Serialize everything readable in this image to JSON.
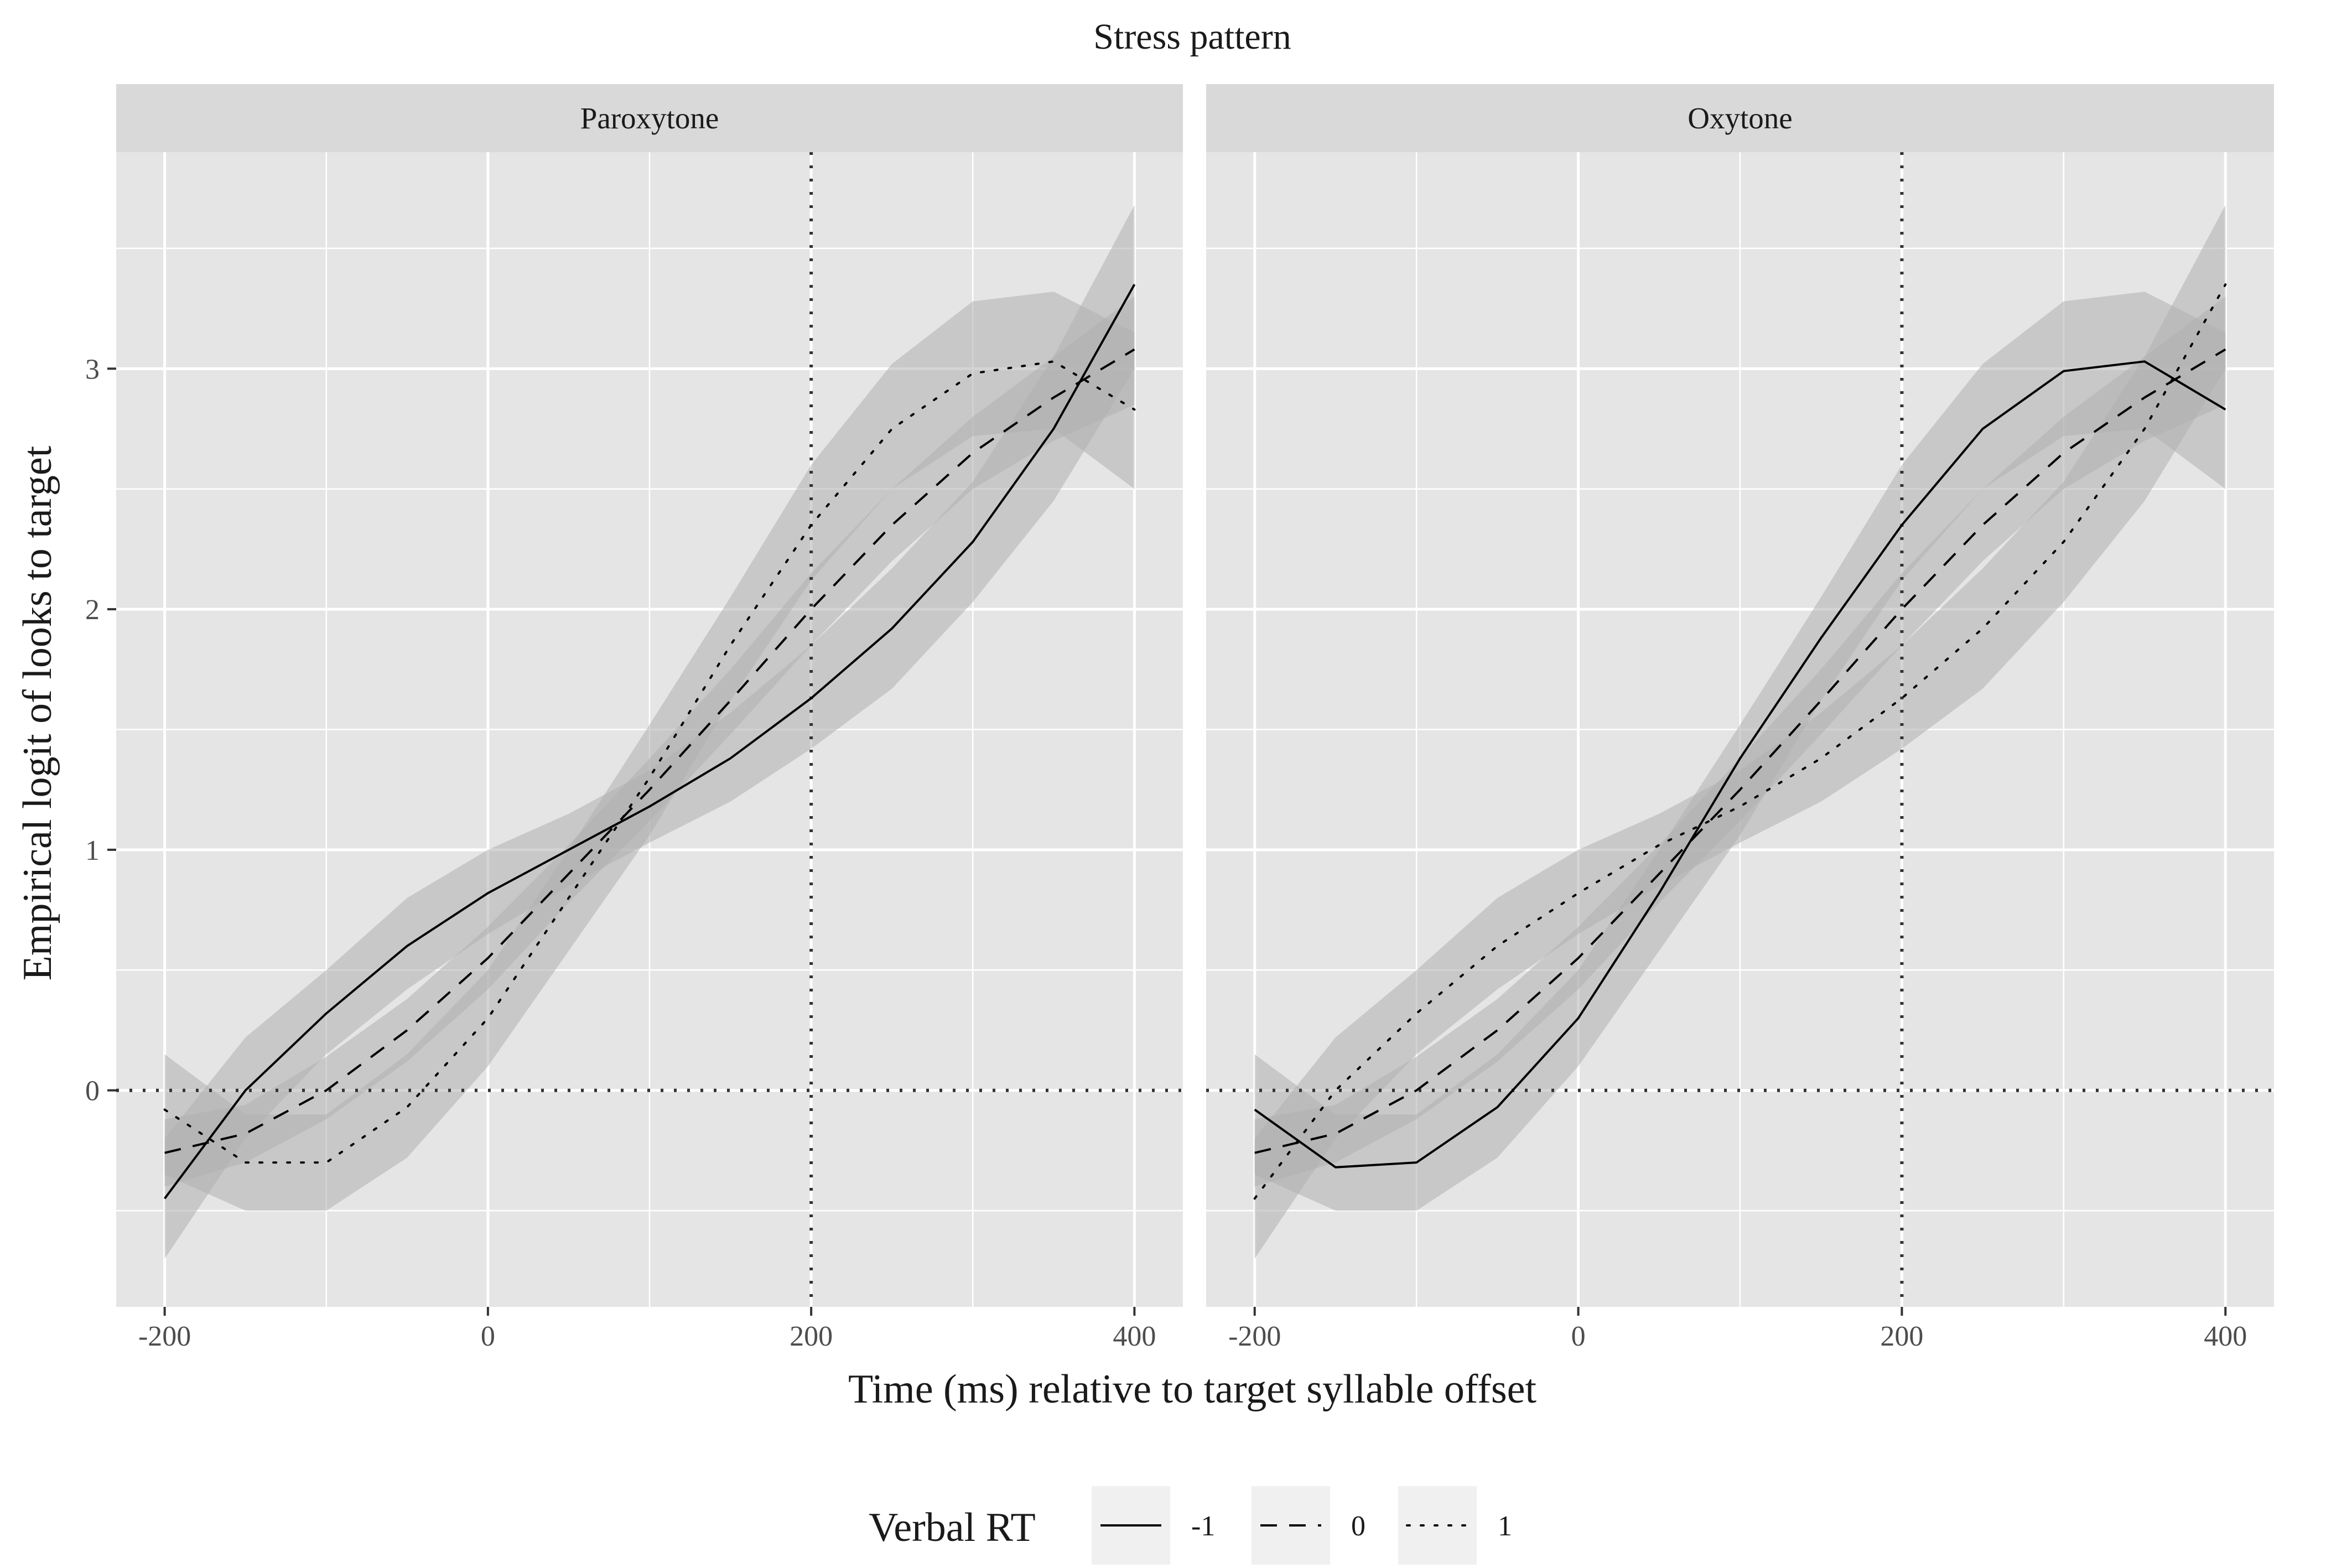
{
  "chart_data": {
    "type": "line",
    "title": "Stress pattern",
    "xlabel": "Time (ms) relative to target syllable offset",
    "ylabel": "Empirical logit of looks to target",
    "xlim": [
      -230,
      430
    ],
    "ylim": [
      -0.9,
      3.9
    ],
    "x_ticks": [
      -200,
      0,
      200,
      400
    ],
    "x_tick_labels": [
      "-200",
      "0",
      "200",
      "400"
    ],
    "y_ticks": [
      0,
      1,
      2,
      3
    ],
    "y_tick_labels": [
      "0",
      "1",
      "2",
      "3"
    ],
    "grid": true,
    "reference_lines": {
      "x": 200,
      "y": 0,
      "style": "dotted"
    },
    "legend": {
      "title": "Verbal RT",
      "placement": "bottom",
      "entries": [
        {
          "label": "-1",
          "linetype": "solid"
        },
        {
          "label": "0",
          "linetype": "dashed"
        },
        {
          "label": "1",
          "linetype": "dotted"
        }
      ]
    },
    "colors": {
      "panel_bg": "#e5e5e5",
      "strip_bg": "#d9d9d9",
      "grid": "#ffffff",
      "line": "#000000",
      "ribbon": "#b0b0b0",
      "ref_line": "#333333"
    },
    "x": [
      -200,
      -150,
      -100,
      -50,
      0,
      50,
      100,
      150,
      200,
      250,
      300,
      350,
      400
    ],
    "panels": [
      {
        "strip": "Paroxytone",
        "series": [
          {
            "level": "-1",
            "linetype": "solid",
            "values": [
              -0.45,
              0.0,
              0.32,
              0.6,
              0.82,
              1.0,
              1.18,
              1.38,
              1.63,
              1.92,
              2.28,
              2.75,
              3.35
            ],
            "lower": [
              -0.7,
              -0.2,
              0.15,
              0.42,
              0.65,
              0.85,
              1.03,
              1.2,
              1.42,
              1.67,
              2.03,
              2.45,
              3.0
            ],
            "upper": [
              -0.2,
              0.22,
              0.5,
              0.8,
              1.0,
              1.15,
              1.33,
              1.57,
              1.85,
              2.17,
              2.53,
              3.05,
              3.68
            ]
          },
          {
            "level": "0",
            "linetype": "dashed",
            "values": [
              -0.26,
              -0.18,
              0.0,
              0.25,
              0.55,
              0.9,
              1.25,
              1.62,
              2.0,
              2.35,
              2.65,
              2.88,
              3.08
            ],
            "lower": [
              -0.4,
              -0.3,
              -0.12,
              0.12,
              0.42,
              0.78,
              1.12,
              1.48,
              1.85,
              2.2,
              2.5,
              2.7,
              2.85
            ],
            "upper": [
              -0.12,
              -0.06,
              0.14,
              0.38,
              0.68,
              1.02,
              1.38,
              1.75,
              2.15,
              2.5,
              2.8,
              3.05,
              3.3
            ]
          },
          {
            "level": "1",
            "linetype": "dotted",
            "values": [
              -0.08,
              -0.3,
              -0.3,
              -0.07,
              0.3,
              0.8,
              1.3,
              1.85,
              2.35,
              2.75,
              2.98,
              3.03,
              2.83
            ],
            "lower": [
              -0.35,
              -0.5,
              -0.5,
              -0.28,
              0.1,
              0.58,
              1.06,
              1.62,
              2.12,
              2.5,
              2.72,
              2.75,
              2.5
            ],
            "upper": [
              0.15,
              -0.1,
              -0.1,
              0.15,
              0.5,
              1.0,
              1.52,
              2.05,
              2.6,
              3.02,
              3.28,
              3.32,
              3.15
            ]
          }
        ]
      },
      {
        "strip": "Oxytone",
        "series": [
          {
            "level": "-1",
            "linetype": "solid",
            "values": [
              -0.08,
              -0.32,
              -0.3,
              -0.07,
              0.3,
              0.82,
              1.38,
              1.88,
              2.35,
              2.75,
              2.99,
              3.03,
              2.83
            ],
            "lower": [
              -0.35,
              -0.5,
              -0.5,
              -0.28,
              0.1,
              0.58,
              1.06,
              1.62,
              2.12,
              2.5,
              2.72,
              2.75,
              2.5
            ],
            "upper": [
              0.15,
              -0.1,
              -0.1,
              0.15,
              0.5,
              1.0,
              1.52,
              2.05,
              2.6,
              3.02,
              3.28,
              3.32,
              3.15
            ]
          },
          {
            "level": "0",
            "linetype": "dashed",
            "values": [
              -0.26,
              -0.18,
              0.0,
              0.25,
              0.55,
              0.9,
              1.25,
              1.62,
              2.0,
              2.35,
              2.65,
              2.88,
              3.08
            ],
            "lower": [
              -0.4,
              -0.3,
              -0.12,
              0.12,
              0.42,
              0.78,
              1.12,
              1.48,
              1.85,
              2.2,
              2.5,
              2.7,
              2.85
            ],
            "upper": [
              -0.12,
              -0.06,
              0.14,
              0.38,
              0.68,
              1.02,
              1.38,
              1.75,
              2.15,
              2.5,
              2.8,
              3.05,
              3.3
            ]
          },
          {
            "level": "1",
            "linetype": "dotted",
            "values": [
              -0.45,
              0.0,
              0.32,
              0.6,
              0.82,
              1.02,
              1.18,
              1.38,
              1.63,
              1.92,
              2.28,
              2.75,
              3.35
            ],
            "lower": [
              -0.7,
              -0.2,
              0.15,
              0.42,
              0.65,
              0.85,
              1.03,
              1.2,
              1.42,
              1.67,
              2.03,
              2.45,
              3.0
            ],
            "upper": [
              -0.2,
              0.22,
              0.5,
              0.8,
              1.0,
              1.15,
              1.33,
              1.57,
              1.85,
              2.17,
              2.53,
              3.05,
              3.68
            ]
          }
        ]
      }
    ]
  }
}
